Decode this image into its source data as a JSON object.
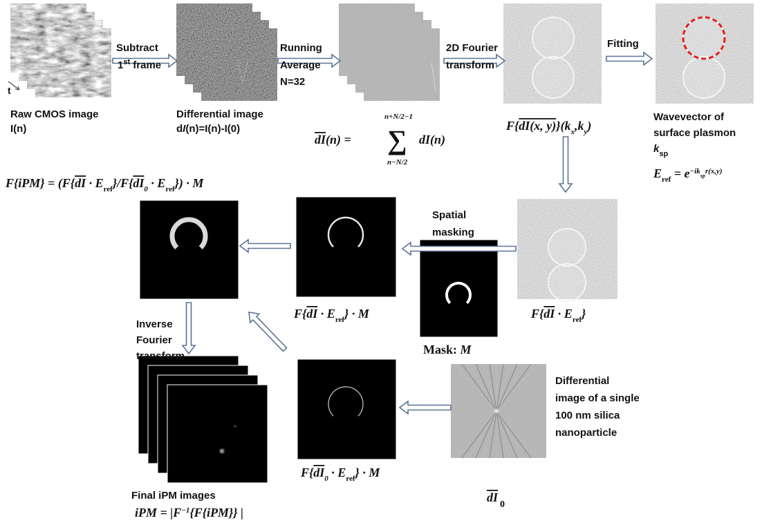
{
  "raw": {
    "label": "Raw CMOS image",
    "frame": "I(n)",
    "axis": "t"
  },
  "subtract": {
    "line1": "Subtract",
    "ord": "1",
    "ord_sup": "st",
    "rest": " frame"
  },
  "differential": {
    "label": "Differential image",
    "formula": [
      "d",
      "I",
      "(n)=I(n)-I(0)"
    ]
  },
  "running_average": {
    "line1": "Running",
    "line2": "Average",
    "line3": "N=32"
  },
  "average_formula": {
    "lhs": "dI",
    "lhs_rest": "(n) = ",
    "sigma": "∑",
    "upper": "n+N/2−1",
    "lower": "n−N/2",
    "rhs": "dI(n)"
  },
  "fourier": {
    "line1": "2D Fourier",
    "line2": "transform",
    "label": [
      "F{",
      "dI(x, y)",
      "}(k",
      "x",
      ",k",
      "y",
      ")"
    ]
  },
  "fitting": {
    "label": "Fitting",
    "result": [
      "Wavevector of",
      "surface plasmon"
    ],
    "k": [
      "k",
      "sp"
    ],
    "eref": [
      "E",
      "ref",
      " = e",
      "−ik",
      "sp",
      "r(x,y)"
    ]
  },
  "ipm_formula": [
    "F{iPM} = (F{",
    "dI",
    " · E",
    "ref",
    "}/F{",
    "dI",
    "0",
    " · E",
    "ref",
    "}) · M"
  ],
  "masking": {
    "line1": "Spatial",
    "line2": "masking",
    "ref_label": [
      "F{",
      "dI",
      " · E",
      "ref",
      "}"
    ],
    "masked_label": [
      "F{",
      "dI",
      " · E",
      "ref",
      "} · M"
    ],
    "mask_label": [
      "Mask: ",
      "M"
    ]
  },
  "inverse": [
    "Inverse",
    "Fourier",
    "transform"
  ],
  "particle": {
    "description": [
      "Differential",
      "image of a single",
      "100 nm silica",
      "nanoparticle"
    ],
    "label": [
      "dI",
      "0"
    ],
    "masked_label": [
      "F{",
      "dI",
      "0",
      " · E",
      "ref",
      "} · M"
    ]
  },
  "final": {
    "label": "Final iPM images",
    "formula": [
      "iPM = |F",
      "−1",
      "{F{iPM}} |"
    ]
  }
}
